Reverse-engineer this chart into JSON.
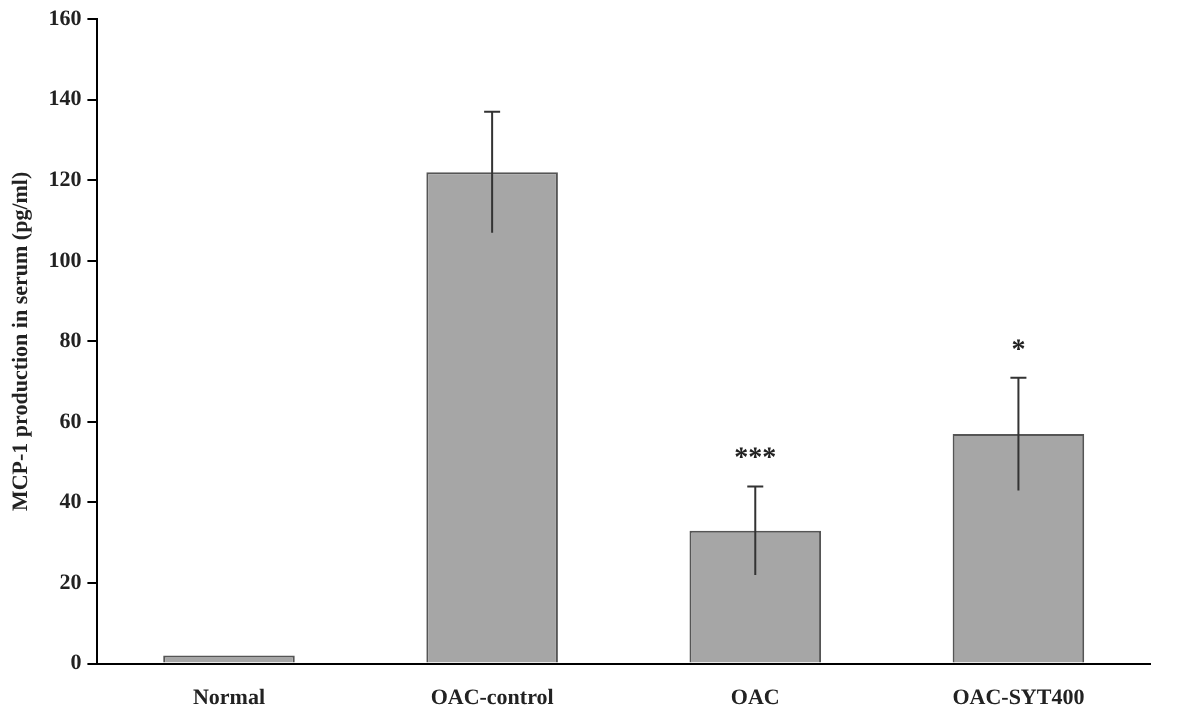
{
  "chart_data": {
    "type": "bar",
    "ylabel": "MCP-1 production in serum (pg/ml)",
    "categories": [
      "Normal",
      "OAC-control",
      "OAC",
      "OAC-SYT400"
    ],
    "values": [
      2,
      122,
      33,
      57
    ],
    "errors": [
      null,
      15,
      11,
      14
    ],
    "color": "#a6a6a6",
    "ylim": [
      0,
      160
    ],
    "yticks": [
      0,
      20,
      40,
      60,
      80,
      100,
      120,
      140,
      160
    ],
    "grid": false,
    "legend": false,
    "annotations": [
      "***",
      "*"
    ]
  }
}
